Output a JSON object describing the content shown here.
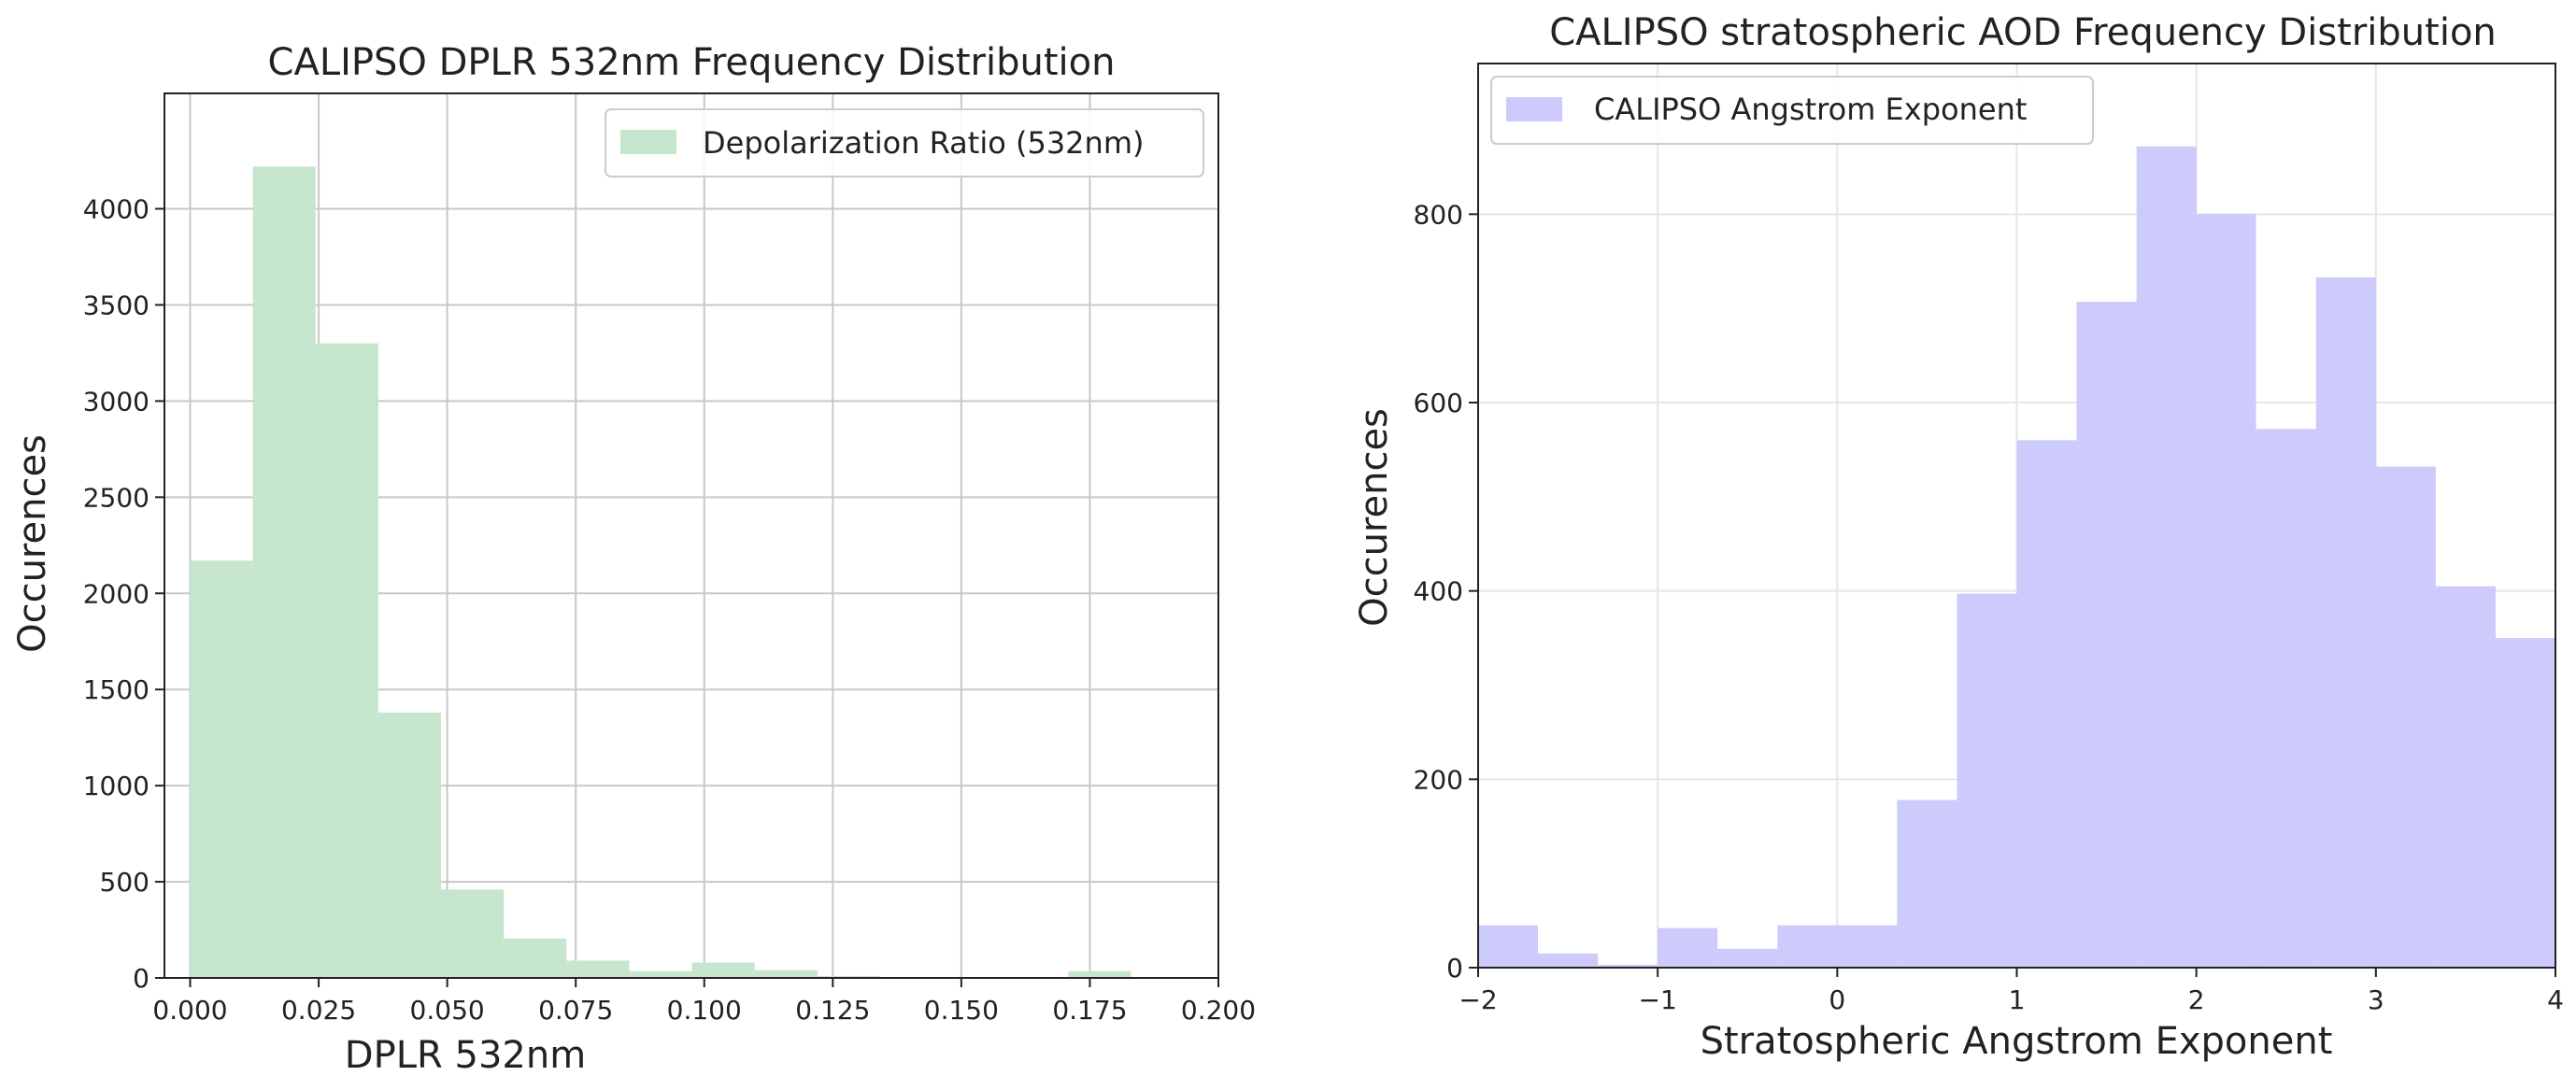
{
  "chart_data": [
    {
      "type": "bar",
      "subtype": "histogram",
      "title": "CALIPSO DPLR 532nm Frequency Distribution",
      "xlabel": "DPLR 532nm",
      "ylabel": "Occurences",
      "xlim": [
        -0.005,
        0.2
      ],
      "ylim": [
        0,
        4600
      ],
      "xticks": [
        0.0,
        0.025,
        0.05,
        0.075,
        0.1,
        0.125,
        0.15,
        0.175,
        0.2
      ],
      "xtick_labels": [
        "0.000",
        "0.025",
        "0.050",
        "0.075",
        "0.100",
        "0.125",
        "0.150",
        "0.175",
        "0.200"
      ],
      "yticks": [
        0,
        500,
        1000,
        1500,
        2000,
        2500,
        3000,
        3500,
        4000
      ],
      "ytick_labels": [
        "0",
        "500",
        "1000",
        "1500",
        "2000",
        "2500",
        "3000",
        "3500",
        "4000"
      ],
      "grid": true,
      "legend": {
        "position": "top-right",
        "entries": [
          "Depolarization Ratio (532nm)"
        ]
      },
      "color": "#c5e6cd",
      "series": [
        {
          "name": "Depolarization Ratio (532nm)",
          "bin_edges": [
            0.0,
            0.0122,
            0.0244,
            0.0366,
            0.0488,
            0.061,
            0.0732,
            0.0854,
            0.0976,
            0.1098,
            0.122,
            0.1342,
            0.1464,
            0.1586,
            0.1708,
            0.183
          ],
          "values": [
            2170,
            4220,
            3300,
            1380,
            460,
            205,
            90,
            35,
            80,
            40,
            10,
            5,
            5,
            5,
            35
          ]
        }
      ]
    },
    {
      "type": "bar",
      "subtype": "histogram",
      "title": "CALIPSO stratospheric AOD Frequency Distribution",
      "xlabel": "Stratospheric Angstrom Exponent",
      "ylabel": "Occurences",
      "xlim": [
        -2,
        4
      ],
      "ylim": [
        0,
        960
      ],
      "xticks": [
        -2,
        -1,
        0,
        1,
        2,
        3,
        4
      ],
      "xtick_labels": [
        "−2",
        "−1",
        "0",
        "1",
        "2",
        "3",
        "4"
      ],
      "yticks": [
        0,
        200,
        400,
        600,
        800
      ],
      "ytick_labels": [
        "0",
        "200",
        "400",
        "600",
        "800"
      ],
      "grid": true,
      "legend": {
        "position": "top-left",
        "entries": [
          "CALIPSO Angstrom Exponent"
        ]
      },
      "color": "#cccbfb",
      "series": [
        {
          "name": "CALIPSO Angstrom Exponent",
          "bin_edges": [
            -2.0,
            -1.667,
            -1.333,
            -1.0,
            -0.667,
            -0.333,
            0.0,
            0.333,
            0.667,
            1.0,
            1.333,
            1.667,
            2.0,
            2.333,
            2.667,
            3.0,
            3.333,
            3.667,
            4.0
          ],
          "values": [
            45,
            15,
            3,
            42,
            20,
            45,
            45,
            178,
            397,
            560,
            707,
            872,
            800,
            572,
            733,
            532,
            405,
            350
          ]
        }
      ]
    }
  ]
}
